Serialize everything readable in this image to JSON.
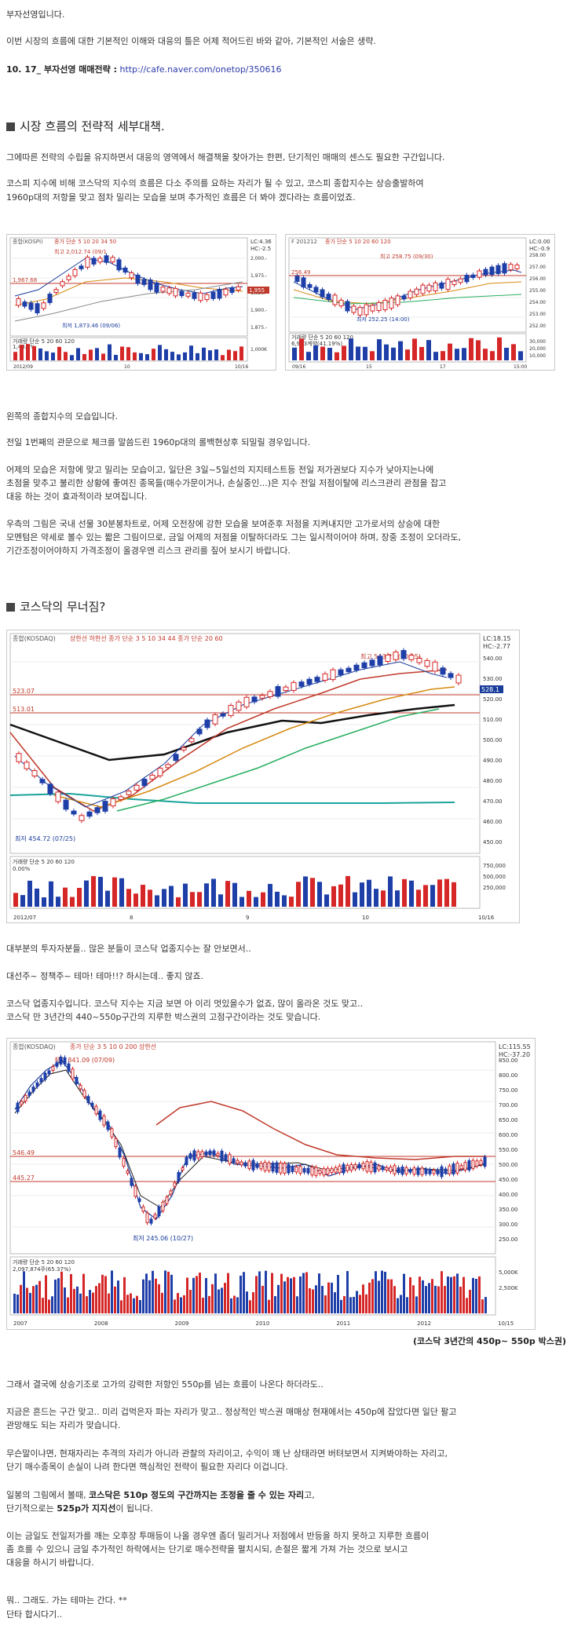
{
  "p1": "부자선영입니다.",
  "p2": "이번 시장의 흐름에 대한 기본적인 이해와 대응의 틀은 어제 적어드린 바와 같아, 기본적인 서술은 생략.",
  "strategy": {
    "label": "10. 17_ 부자선영 매매전략 :",
    "link": "http://cafe.naver.com/onetop/350616"
  },
  "section1": {
    "title": "시장 흐름의 전략적 세부대책.",
    "p1": "그에따른 전략의 수립을 유지하면서 대응의 영역에서 해결책을 찾아가는 한편, 단기적인 매매의 센스도 필요한 구간입니다.",
    "p2a": "코스피 지수에 비해 코스닥의 지수의 흐름은 다소 주의를 요하는 자리가 될 수 있고, 코스피 종합지수는 상승출발하여",
    "p2b": "1960p대의 저항을 맞고 점차 밀리는 모습을 보며 추가적인 흐름은 더 봐야 겠다라는 흐름이었죠."
  },
  "kospi_chart": {
    "header": "종합(KOSPI)",
    "legend": "종가 단순 5 10 20 34 50",
    "high": "최고 2,012.74 (09/1",
    "low": "최저 1,873.46 (09/06)",
    "level": "1,967.68",
    "lc": "LC:4.36",
    "hc": "HC:-2.5",
    "price_box": "1,955",
    "yticks": [
      "2,000.-",
      "1,975.-",
      "1,925.-",
      "1,900.-",
      "1,875.-"
    ],
    "vol_label": "거래량 단순 5 20 60 120",
    "vol_value": "1,40.0%",
    "vol_tick": "1,000K",
    "dates": [
      "2012/09",
      "10",
      "10/16"
    ]
  },
  "futures_chart": {
    "header": "F 201212",
    "legend": "종가 단순 5 10 20 60 120",
    "high": "최고 258.75 (09/30)",
    "low": "최저 252.25 (14:00)",
    "level": "256.49",
    "lc": "LC:0.00",
    "hc": "HC:-0.9",
    "yticks": [
      "258.00",
      "257.00",
      "256.00",
      "255.00",
      "254.00",
      "253.00",
      "252.00"
    ],
    "vol_label": "거래량 단순 5 20 60 120",
    "vol_value": "6,963계약(41.19%)",
    "vol_ticks": [
      "30,000",
      "20,000",
      "10,000"
    ],
    "dates": [
      "09/16",
      "15",
      "17",
      "15:00"
    ]
  },
  "para2": {
    "a": "왼쪽의 종합지수의 모습입니다.",
    "b": "전일 1번째의 관문으로 체크를 말씀드린 1960p대의 롤백현상후 되밀릴 경우입니다.",
    "c1": "어제의 모습은 저항에 맞고 밀리는 모습이고, 일단은 3일~5일선의 지지테스트등 전일 저가권보다 지수가 낮아지는나에",
    "c2": "초점을 맞추고 불리한 상황에 좋여진 종목들(매수가문이거나, 손실중인...)은 지수 전일 저점이탈에 리스크관리 관점을 잡고",
    "c3": "대응 하는 것이 효과적이라 보여집니다.",
    "d1": "우측의 그림은 국내 선물 30분봉차트로, 어제 오전장에 강한 모습을 보여준후 저점을 지켜내지만 고가로서의 상승에 대한",
    "d2": "모멘텀은 약세로 볼수 있는 짧은 그림이므로, 금일 어제의 저점을 이탈하더라도 그는 일시적이어야 하며, 장중 조정이 오더라도,",
    "d3": "기간조정이어야하지 가격조정이 올경우엔 리스크 관리를 짚어 보시기 바랍니다."
  },
  "section2": {
    "title": "코스닥의 무너짐?"
  },
  "kosdaq_chart": {
    "header": "종합(KOSDAQ)",
    "legend": "상한선 하한선 종가 단순 3 5 10 34 44 종가 단순 20 60",
    "high": "최고 543.27 (10/15)",
    "low": "최저 454.72 (07/25)",
    "lc": "LC:18.15",
    "hc": "HC:-2.77",
    "level_a": "523.07",
    "level_b": "513.01",
    "price_box": "528.1",
    "yticks": [
      "540.00",
      "530.00",
      "520.00",
      "510.00",
      "500.00",
      "490.00",
      "480.00",
      "470.00",
      "460.00",
      "450.00"
    ],
    "vol_label": "거래량 단순 5 20 60 120",
    "vol_value": "0.00%",
    "vol_ticks": [
      "750,000",
      "500,000",
      "250,000"
    ],
    "dates": [
      "2012/07",
      "8",
      "9",
      "10",
      "10/16"
    ]
  },
  "para3": {
    "a": "대부분의 투자자분들.. 많은 분들이 코스닥 업종지수는 잘 안보면서..",
    "b": "대선주~ 정책주~ 테마! 테마!!? 하시는데.. 좋지 않죠.",
    "c1": "코스닥 업종지수입니다. 코스닥 지수는 지금 보면 아 이리 멋있을수가 없죠, 많이 올라온 것도 맞고..",
    "c2": "코스닥 만 3년간의 440~550p구간의 지루한 박스권의 고점구간이라는 것도 맞습니다."
  },
  "kosdaq_long": {
    "header": "종합(KOSDAQ)",
    "legend": "종가 단순 3 5 10 0 200 상한선",
    "high": "최고 841.09 (07/09)",
    "low": "최저 245.06 (10/27)",
    "lc": "LC:115.55",
    "hc": "HC:-37.20",
    "level_a": "546.49",
    "level_b": "445.27",
    "yticks": [
      "850.00",
      "800.00",
      "750.00",
      "700.00",
      "650.00",
      "600.00",
      "550.00",
      "500.00",
      "450.00",
      "400.00",
      "350.00",
      "300.00",
      "250.00"
    ],
    "vol_label": "거래량 단순 5 20 60 120",
    "vol_value": "2,097,874주(65.37%)",
    "vol_ticks": [
      "5,000K",
      "2,500K"
    ],
    "dates": [
      "2007",
      "2008",
      "2009",
      "2010",
      "2011",
      "2012",
      "10/15"
    ],
    "caption": "(코스닥 3년간의 450p~ 550p 박스권)"
  },
  "para4": {
    "a": "그래서 결국에 상승기조로 고가의 강력한 저항인 550p를 넘는 흐름이 나온다 하더라도..",
    "b1": "지금은 흔드는 구간 맞고.. 미리 겁먹은자 파는 자리가 맞고.. 정상적인 박스권 매매상 현재에서는 450p에 잡았다면 일단 팔고",
    "b2": "관망해도 되는 자리가 맞습니다.",
    "c1": "무슨말이냐면, 현재자리는 추격의 자리가 아니라 관찰의 자리이고, 수익이 꽤 난 상태라면 버텨보면서 지켜봐야하는 자리고,",
    "c2": "단기 매수종목이 손실이 나려 한다면 핵심적인 전략이 필요한 자리다 이겁니다.",
    "d1_pre": "일봉의 그림에서 볼때, ",
    "d1_bold": "코스닥은 510p 정도의 구간까지는 조정을 줄 수 있는 자리",
    "d1_post": "고,",
    "d2_pre": "단기적으로는 ",
    "d2_bold": "525p가 지지선",
    "d2_post": "이 됩니다.",
    "e1": "이는 금일도 전일저가를 깨는 오후장 투매등이 나올 경우엔 좀더 밀리거나 저점에서 반등을 하지 못하고 지루한 흐름이",
    "e2": "좀 흐를 수 있으니 금일 추가적인 하락에서는 단기로 매수전략을 펼치시되, 손절은 짧게 가져 가는 것으로 보시고",
    "e3": "대응을 하시기 바랍니다.",
    "f": "뭐.. 그래도. 가는 테마는 간다. **",
    "g": "단타 합시다기.."
  }
}
